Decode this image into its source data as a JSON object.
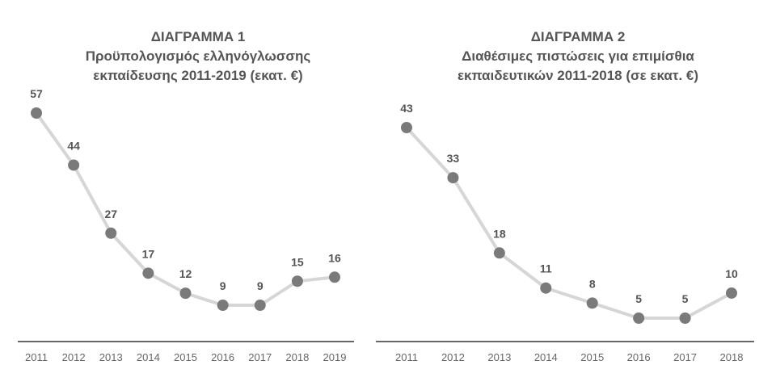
{
  "chart_data": [
    {
      "type": "line",
      "title": "ΔΙΑΓΡΑΜΜΑ 1",
      "subtitle_line1": "Προϋπολογισμός ελληνόγλωσσης",
      "subtitle_line2": "εκπαίδευσης 2011-2019 (εκατ. €)",
      "categories": [
        "2011",
        "2012",
        "2013",
        "2014",
        "2015",
        "2016",
        "2017",
        "2018",
        "2019"
      ],
      "values": [
        57,
        44,
        27,
        17,
        12,
        9,
        9,
        15,
        16
      ],
      "xlabel": "",
      "ylabel": "",
      "grid": false,
      "line_color": "#d6d6d6",
      "marker_color": "#7a7a7a"
    },
    {
      "type": "line",
      "title": "ΔΙΑΓΡΑΜΜΑ 2",
      "subtitle_line1": "Διαθέσιμες πιστώσεις για επιμίσθια",
      "subtitle_line2": "εκπαιδευτικών 2011-2018 (σε εκατ. €)",
      "categories": [
        "2011",
        "2012",
        "2013",
        "2014",
        "2015",
        "2016",
        "2017",
        "2018"
      ],
      "values": [
        43,
        33,
        18,
        11,
        8,
        5,
        5,
        10
      ],
      "xlabel": "",
      "ylabel": "",
      "grid": false,
      "line_color": "#d6d6d6",
      "marker_color": "#7a7a7a"
    }
  ]
}
